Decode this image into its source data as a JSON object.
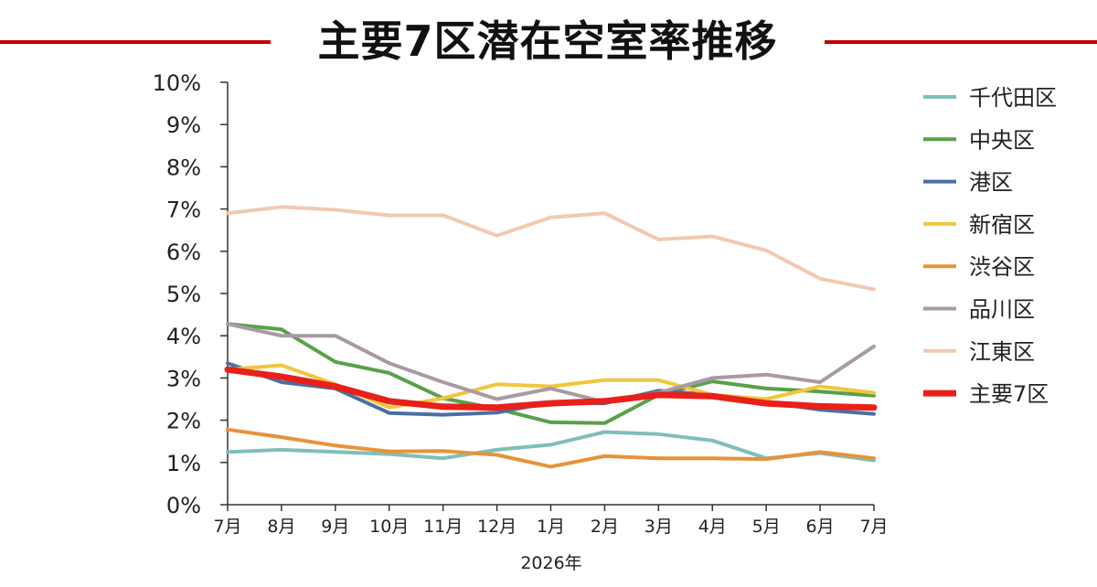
{
  "title": "主要7区潜在空室率推移",
  "chart_data": {
    "type": "line",
    "title": "主要7区潜在空室率推移",
    "xlabel": "2026年",
    "ylabel": "",
    "ylim": [
      0,
      10
    ],
    "y_ticks": [
      "0%",
      "1%",
      "2%",
      "3%",
      "4%",
      "5%",
      "6%",
      "7%",
      "8%",
      "9%",
      "10%"
    ],
    "categories": [
      "7月",
      "8月",
      "9月",
      "10月",
      "11月",
      "12月",
      "1月",
      "2月",
      "3月",
      "4月",
      "5月",
      "6月",
      "7月"
    ],
    "legend_position": "right",
    "grid": false,
    "series": [
      {
        "name": "千代田区",
        "color": "#7fbfb8",
        "values": [
          1.25,
          1.3,
          1.25,
          1.2,
          1.1,
          1.3,
          1.42,
          1.72,
          1.67,
          1.52,
          1.1,
          1.22,
          1.05
        ]
      },
      {
        "name": "中央区",
        "color": "#5aa049",
        "values": [
          4.28,
          4.15,
          3.38,
          3.12,
          2.52,
          2.27,
          1.95,
          1.93,
          2.6,
          2.92,
          2.75,
          2.68,
          2.58
        ]
      },
      {
        "name": "港区",
        "color": "#4a6fa5",
        "values": [
          3.35,
          2.9,
          2.75,
          2.17,
          2.13,
          2.18,
          2.42,
          2.4,
          2.7,
          2.6,
          2.43,
          2.25,
          2.15
        ]
      },
      {
        "name": "新宿区",
        "color": "#f0c63c",
        "values": [
          3.2,
          3.3,
          2.85,
          2.3,
          2.52,
          2.85,
          2.8,
          2.95,
          2.95,
          2.6,
          2.5,
          2.8,
          2.65
        ]
      },
      {
        "name": "渋谷区",
        "color": "#e8923a",
        "values": [
          1.78,
          1.6,
          1.4,
          1.26,
          1.27,
          1.18,
          0.9,
          1.15,
          1.1,
          1.1,
          1.08,
          1.25,
          1.1
        ]
      },
      {
        "name": "品川区",
        "color": "#a89aa4",
        "values": [
          4.28,
          4.0,
          4.0,
          3.35,
          2.9,
          2.5,
          2.75,
          2.43,
          2.65,
          3.0,
          3.08,
          2.9,
          3.75
        ]
      },
      {
        "name": "江東区",
        "color": "#f2c9b0",
        "values": [
          6.9,
          7.05,
          6.98,
          6.85,
          6.85,
          6.37,
          6.8,
          6.9,
          6.28,
          6.35,
          6.02,
          5.35,
          5.1
        ]
      },
      {
        "name": "主要7区",
        "color": "#e8201a",
        "values": [
          3.2,
          3.03,
          2.8,
          2.45,
          2.32,
          2.3,
          2.4,
          2.45,
          2.6,
          2.57,
          2.4,
          2.33,
          2.3
        ]
      }
    ]
  }
}
